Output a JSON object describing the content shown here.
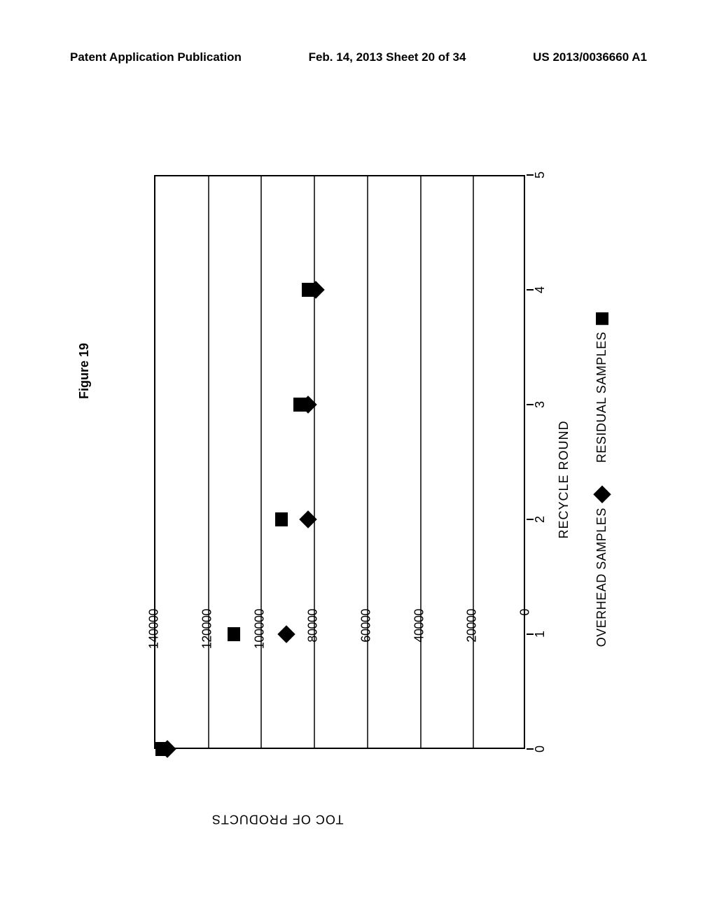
{
  "header": {
    "left": "Patent Application Publication",
    "center": "Feb. 14, 2013  Sheet 20 of 34",
    "right": "US 2013/0036660 A1"
  },
  "figure": {
    "title": "Figure 19",
    "type": "scatter",
    "background_color": "#ffffff",
    "border_color": "#000000",
    "grid_color": "#000000",
    "y_axis": {
      "label": "TOC OF PRODUCTS",
      "min": 0,
      "max": 140000,
      "tick_step": 20000,
      "ticks": [
        0,
        20000,
        40000,
        60000,
        80000,
        100000,
        120000,
        140000
      ],
      "label_fontsize": 18
    },
    "x_axis": {
      "label": "RECYCLE ROUND",
      "min": 0,
      "max": 5,
      "tick_step": 1,
      "ticks": [
        0,
        1,
        2,
        3,
        4,
        5
      ],
      "label_fontsize": 18
    },
    "series": [
      {
        "name": "OVERHEAD SAMPLES",
        "marker": "diamond",
        "marker_color": "#000000",
        "marker_size": 18,
        "points": [
          {
            "x": 0,
            "y": 135000
          },
          {
            "x": 1,
            "y": 90000
          },
          {
            "x": 2,
            "y": 82000
          },
          {
            "x": 3,
            "y": 82000
          },
          {
            "x": 4,
            "y": 79000
          }
        ]
      },
      {
        "name": "RESIDUAL SAMPLES",
        "marker": "square",
        "marker_color": "#000000",
        "marker_size": 18,
        "points": [
          {
            "x": 0,
            "y": 137000
          },
          {
            "x": 1,
            "y": 110000
          },
          {
            "x": 2,
            "y": 92000
          },
          {
            "x": 3,
            "y": 85000
          },
          {
            "x": 4,
            "y": 82000
          }
        ]
      }
    ],
    "legend": {
      "items": [
        {
          "label": "OVERHEAD SAMPLES",
          "marker": "diamond"
        },
        {
          "label": "RESIDUAL SAMPLES",
          "marker": "square"
        }
      ]
    }
  }
}
